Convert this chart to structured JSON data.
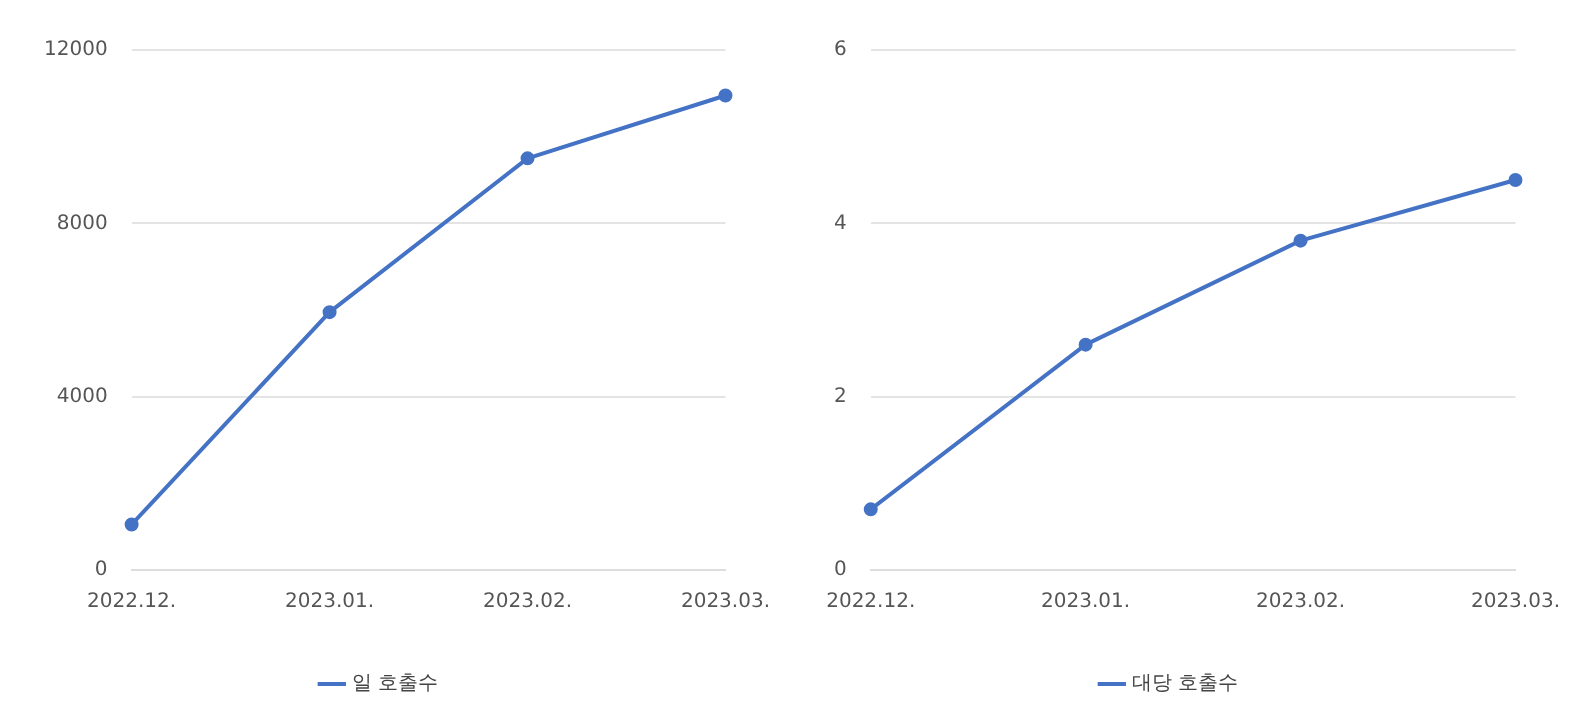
{
  "chart_data": [
    {
      "type": "line",
      "categories": [
        "2022.12.",
        "2023.01.",
        "2023.02.",
        "2023.03."
      ],
      "series": [
        {
          "name": "일 호출수",
          "color": "#4472c4",
          "values": [
            1050,
            5950,
            9500,
            10950
          ]
        }
      ],
      "ylim": [
        0,
        12000
      ],
      "yticks": [
        0,
        4000,
        8000,
        12000
      ],
      "grid": "y",
      "legend": "bottom",
      "marker": "circle",
      "line_style": "solid"
    },
    {
      "type": "line",
      "categories": [
        "2022.12.",
        "2023.01.",
        "2023.02.",
        "2023.03."
      ],
      "series": [
        {
          "name": "대당 호출수",
          "color": "#4472c4",
          "values": [
            0.7,
            2.6,
            3.8,
            4.5
          ]
        }
      ],
      "ylim": [
        0,
        6
      ],
      "yticks": [
        0,
        2,
        4,
        6
      ],
      "grid": "y",
      "legend": "bottom",
      "marker": "circle",
      "line_style": "solid"
    }
  ]
}
